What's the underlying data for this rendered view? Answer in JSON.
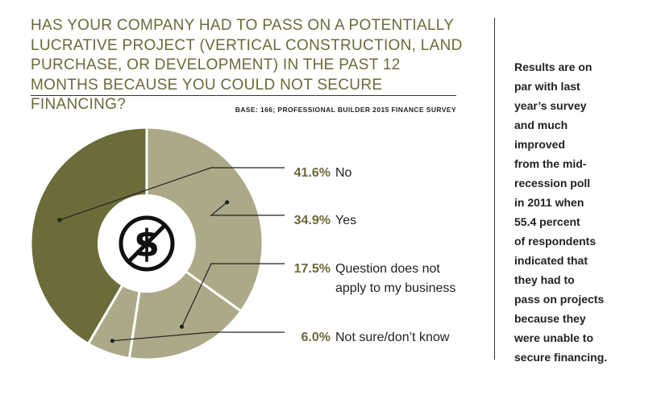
{
  "colors": {
    "title": "#6b6a3a",
    "accent_pct": "#6b6a3a",
    "slice_dark": "#6b6c39",
    "slice_light": "#aba987",
    "icon": "#111111",
    "text": "#222222"
  },
  "title": "HAS YOUR COMPANY HAD TO PASS ON A POTENTIALLY LUCRATIVE PROJECT (VERTICAL CONSTRUCTION, LAND PURCHASE, OR DEVELOPMENT) IN THE PAST 12 MONTHS BECAUSE YOU COULD NOT SECURE FINANCING?",
  "base_note": "BASE: 166; PROFESSIONAL BUILDER 2015 FINANCE SURVEY",
  "side_note_lines": [
    "Results are on",
    "par with last",
    "year’s survey",
    "and much",
    "improved",
    "from the mid-",
    "recession poll",
    "in 2011 when",
    "55.4 percent",
    "of respondents",
    "indicated that",
    "they had to",
    "pass on projects",
    "because they",
    "were unable to",
    "secure financing."
  ],
  "center_icon": "no-dollar-icon",
  "chart_data": {
    "type": "pie",
    "title": "HAS YOUR COMPANY HAD TO PASS ON A POTENTIALLY LUCRATIVE PROJECT (VERTICAL CONSTRUCTION, LAND PURCHASE, OR DEVELOPMENT) IN THE PAST 12 MONTHS BECAUSE YOU COULD NOT SECURE FINANCING?",
    "donut": true,
    "slices": [
      {
        "label": "Yes",
        "label_lines": [
          "Yes"
        ],
        "value": 34.9,
        "display": "34.9%",
        "color": "#aba987"
      },
      {
        "label": "Question does not apply to my business",
        "label_lines": [
          "Question does not",
          "apply to my business"
        ],
        "value": 17.5,
        "display": "17.5%",
        "color": "#aba987"
      },
      {
        "label": "Not sure/don’t know",
        "label_lines": [
          "Not sure/don’t know"
        ],
        "value": 6.0,
        "display": "6.0%",
        "color": "#aba987"
      },
      {
        "label": "No",
        "label_lines": [
          "No"
        ],
        "value": 41.6,
        "display": "41.6%",
        "color": "#6b6c39"
      }
    ],
    "legend_order": [
      "No",
      "Yes",
      "Question does not apply to my business",
      "Not sure/don’t know"
    ]
  }
}
